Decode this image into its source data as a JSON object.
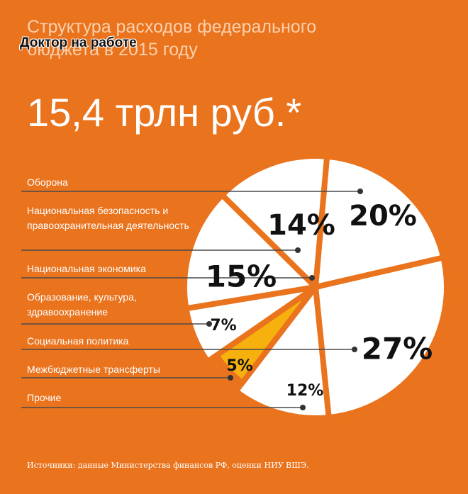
{
  "chart_data": {
    "type": "pie",
    "title": "Структура расходов федерального бюджета в 2015 году",
    "watermark": "Доктор на работе",
    "subtitle": "15,4 трлн руб.*",
    "categories": [
      "Оборона",
      "Социальная политика",
      "Прочие",
      "Межбюджетные трансферты",
      "Образование, культура, здравоохранение",
      "Национальная экономика",
      "Национальная безопасность и правоохранительная деятельность"
    ],
    "values": [
      20,
      27,
      12,
      5,
      7,
      15,
      14
    ],
    "value_labels": [
      "20%",
      "27%",
      "12%",
      "5%",
      "7%",
      "15%",
      "14%"
    ],
    "colors": [
      "#ffffff",
      "#ffffff",
      "#ffffff",
      "#f6b10f",
      "#ffffff",
      "#ffffff",
      "#ffffff"
    ],
    "source": "Источники: данные Министерства финансов РФ, оценки НИУ ВШЭ."
  }
}
